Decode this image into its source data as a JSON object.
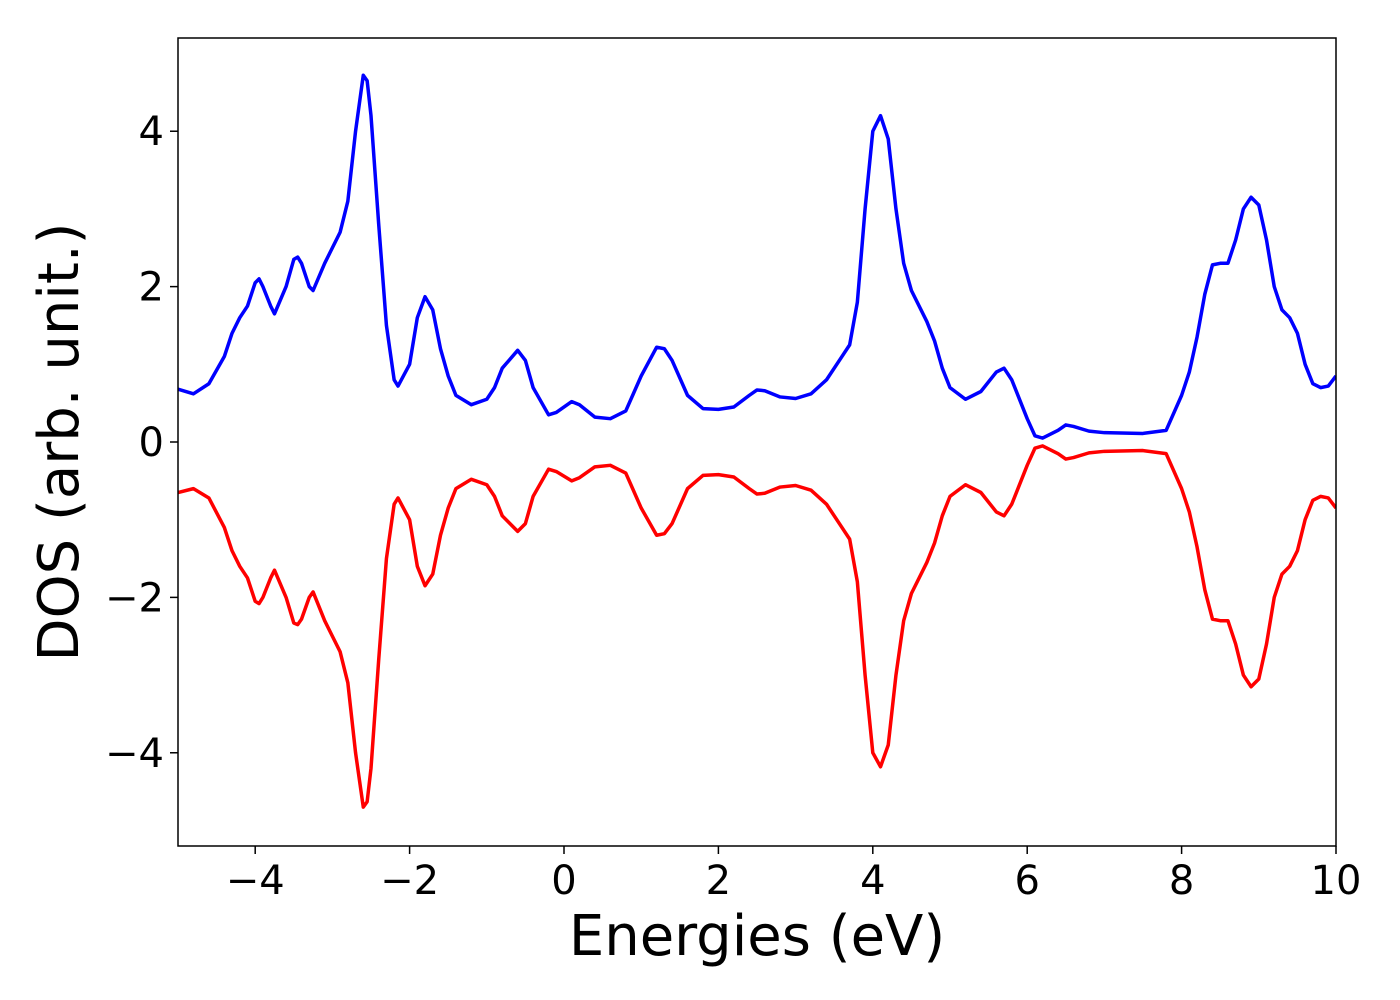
{
  "chart_data": {
    "type": "line",
    "x_label": "Energies (eV)",
    "y_label": "DOS (arb. unit.)",
    "x": [
      -5,
      -4.8,
      -4.6,
      -4.4,
      -4.3,
      -4.2,
      -4.1,
      -4.0,
      -3.95,
      -3.9,
      -3.8,
      -3.75,
      -3.6,
      -3.5,
      -3.45,
      -3.4,
      -3.3,
      -3.25,
      -3.1,
      -3.0,
      -2.9,
      -2.8,
      -2.7,
      -2.6,
      -2.55,
      -2.5,
      -2.4,
      -2.3,
      -2.2,
      -2.15,
      -2.0,
      -1.9,
      -1.8,
      -1.7,
      -1.6,
      -1.5,
      -1.4,
      -1.2,
      -1.0,
      -0.9,
      -0.8,
      -0.6,
      -0.5,
      -0.4,
      -0.2,
      -0.1,
      0.1,
      0.2,
      0.4,
      0.6,
      0.8,
      1.0,
      1.2,
      1.3,
      1.4,
      1.6,
      1.8,
      2.0,
      2.2,
      2.4,
      2.5,
      2.6,
      2.8,
      3.0,
      3.2,
      3.4,
      3.6,
      3.7,
      3.8,
      3.9,
      4.0,
      4.1,
      4.2,
      4.3,
      4.4,
      4.5,
      4.7,
      4.8,
      4.9,
      5.0,
      5.2,
      5.4,
      5.6,
      5.7,
      5.8,
      6.0,
      6.1,
      6.2,
      6.4,
      6.5,
      6.6,
      6.8,
      7.0,
      7.5,
      7.8,
      8.0,
      8.1,
      8.2,
      8.3,
      8.4,
      8.5,
      8.6,
      8.7,
      8.8,
      8.9,
      9.0,
      9.1,
      9.2,
      9.3,
      9.4,
      9.5,
      9.6,
      9.7,
      9.8,
      9.9,
      10
    ],
    "series": [
      {
        "color": "#0000ff",
        "values": [
          0.68,
          0.62,
          0.75,
          1.1,
          1.4,
          1.6,
          1.75,
          2.05,
          2.1,
          2.0,
          1.75,
          1.65,
          2.0,
          2.35,
          2.38,
          2.3,
          2.0,
          1.95,
          2.3,
          2.5,
          2.7,
          3.1,
          4.0,
          4.72,
          4.65,
          4.2,
          2.8,
          1.5,
          0.8,
          0.72,
          1.0,
          1.6,
          1.87,
          1.7,
          1.2,
          0.85,
          0.6,
          0.48,
          0.55,
          0.7,
          0.95,
          1.18,
          1.05,
          0.7,
          0.35,
          0.38,
          0.52,
          0.48,
          0.32,
          0.3,
          0.4,
          0.85,
          1.22,
          1.2,
          1.05,
          0.6,
          0.43,
          0.42,
          0.45,
          0.6,
          0.67,
          0.66,
          0.58,
          0.56,
          0.62,
          0.8,
          1.1,
          1.25,
          1.8,
          3.0,
          4.0,
          4.2,
          3.9,
          3.0,
          2.3,
          1.95,
          1.55,
          1.3,
          0.95,
          0.7,
          0.55,
          0.65,
          0.9,
          0.95,
          0.8,
          0.3,
          0.08,
          0.05,
          0.15,
          0.22,
          0.2,
          0.14,
          0.12,
          0.11,
          0.15,
          0.6,
          0.9,
          1.35,
          1.9,
          2.28,
          2.3,
          2.3,
          2.6,
          3.0,
          3.15,
          3.05,
          2.6,
          2.0,
          1.7,
          1.6,
          1.4,
          1.0,
          0.75,
          0.7,
          0.72,
          0.85
        ]
      },
      {
        "color": "#ff0000",
        "values": [
          -0.65,
          -0.6,
          -0.72,
          -1.1,
          -1.4,
          -1.6,
          -1.75,
          -2.05,
          -2.08,
          -2.0,
          -1.75,
          -1.65,
          -2.0,
          -2.33,
          -2.35,
          -2.28,
          -2.0,
          -1.93,
          -2.3,
          -2.5,
          -2.7,
          -3.1,
          -4.0,
          -4.7,
          -4.63,
          -4.2,
          -2.8,
          -1.5,
          -0.8,
          -0.72,
          -1.0,
          -1.6,
          -1.85,
          -1.7,
          -1.2,
          -0.85,
          -0.6,
          -0.48,
          -0.55,
          -0.7,
          -0.95,
          -1.15,
          -1.05,
          -0.7,
          -0.35,
          -0.38,
          -0.5,
          -0.46,
          -0.32,
          -0.3,
          -0.4,
          -0.85,
          -1.2,
          -1.18,
          -1.05,
          -0.6,
          -0.43,
          -0.42,
          -0.45,
          -0.6,
          -0.67,
          -0.66,
          -0.58,
          -0.56,
          -0.62,
          -0.8,
          -1.1,
          -1.25,
          -1.8,
          -3.0,
          -4.0,
          -4.18,
          -3.9,
          -3.0,
          -2.3,
          -1.95,
          -1.55,
          -1.3,
          -0.95,
          -0.7,
          -0.55,
          -0.65,
          -0.9,
          -0.95,
          -0.8,
          -0.3,
          -0.08,
          -0.05,
          -0.15,
          -0.22,
          -0.2,
          -0.14,
          -0.12,
          -0.11,
          -0.15,
          -0.6,
          -0.9,
          -1.35,
          -1.9,
          -2.28,
          -2.3,
          -2.3,
          -2.6,
          -3.0,
          -3.15,
          -3.05,
          -2.6,
          -2.0,
          -1.7,
          -1.6,
          -1.4,
          -1.0,
          -0.75,
          -0.7,
          -0.72,
          -0.85
        ]
      }
    ],
    "xlim": [
      -5,
      10
    ],
    "xticks": [
      {
        "value": -4,
        "label": "−4"
      },
      {
        "value": -2,
        "label": "−2"
      },
      0,
      2,
      4,
      6,
      8,
      10
    ],
    "ylim": [
      -5.2,
      5.2
    ],
    "yticks": [
      {
        "value": -4,
        "label": "−4"
      },
      {
        "value": -2,
        "label": "−2"
      },
      0,
      2,
      4
    ],
    "grid": false
  }
}
